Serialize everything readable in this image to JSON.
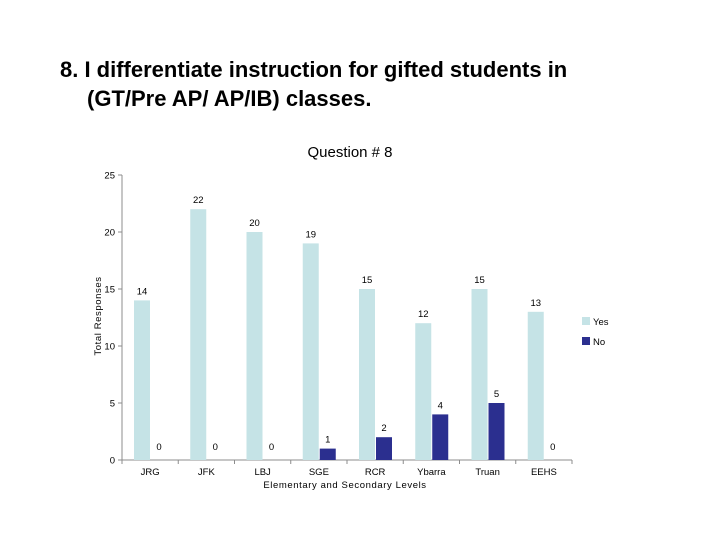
{
  "slide": {
    "title_line1": "8.  I differentiate instruction for gifted students in",
    "title_line2": "(GT/Pre AP/ AP/IB) classes."
  },
  "chart_data": {
    "type": "bar",
    "title": "Question # 8",
    "xlabel": "Elementary and Secondary Levels",
    "ylabel": "Total Responses",
    "categories": [
      "JRG",
      "JFK",
      "LBJ",
      "SGE",
      "RCR",
      "Ybarra",
      "Truan",
      "EEHS"
    ],
    "series": [
      {
        "name": "Yes",
        "values": [
          14,
          22,
          20,
          19,
          15,
          12,
          15,
          13
        ],
        "color": "#c5e3e6"
      },
      {
        "name": "No",
        "values": [
          0,
          0,
          0,
          1,
          2,
          4,
          5,
          0
        ],
        "color": "#2b2f8f"
      }
    ],
    "ylim": [
      0,
      25
    ],
    "yticks": [
      0,
      5,
      10,
      15,
      20,
      25
    ],
    "legend": "right",
    "grid": false
  }
}
